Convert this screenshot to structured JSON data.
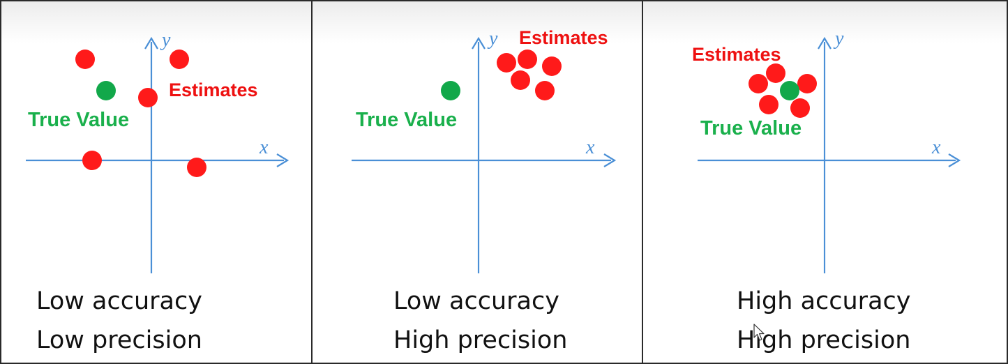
{
  "panels": [
    {
      "id": "low-accuracy-low-precision",
      "x_axis_label": "x",
      "y_axis_label": "y",
      "estimates_label": "Estimates",
      "true_value_label": "True Value",
      "caption_line1": "Low accuracy",
      "caption_line2": "Low precision",
      "true_value": {
        "x": -1.3,
        "y": 2.0
      },
      "estimates": [
        {
          "x": -1.9,
          "y": 2.9
        },
        {
          "x": 0.8,
          "y": 2.9
        },
        {
          "x": -0.1,
          "y": 1.8
        },
        {
          "x": -1.7,
          "y": 0.0
        },
        {
          "x": 1.3,
          "y": -0.2
        }
      ]
    },
    {
      "id": "low-accuracy-high-precision",
      "x_axis_label": "x",
      "y_axis_label": "y",
      "estimates_label": "Estimates",
      "true_value_label": "True Value",
      "caption_line1": "Low accuracy",
      "caption_line2": "High precision",
      "true_value": {
        "x": -0.8,
        "y": 2.0
      },
      "estimates": [
        {
          "x": 0.8,
          "y": 2.8
        },
        {
          "x": 1.4,
          "y": 2.9
        },
        {
          "x": 2.1,
          "y": 2.7
        },
        {
          "x": 1.2,
          "y": 2.3
        },
        {
          "x": 1.9,
          "y": 2.0
        }
      ]
    },
    {
      "id": "high-accuracy-high-precision",
      "x_axis_label": "x",
      "y_axis_label": "y",
      "estimates_label": "Estimates",
      "true_value_label": "True Value",
      "caption_line1": "High accuracy",
      "caption_line2": "High precision",
      "true_value": {
        "x": -1.0,
        "y": 2.0
      },
      "estimates": [
        {
          "x": -1.4,
          "y": 2.5
        },
        {
          "x": -1.9,
          "y": 2.2
        },
        {
          "x": -0.5,
          "y": 2.2
        },
        {
          "x": -1.6,
          "y": 1.6
        },
        {
          "x": -0.7,
          "y": 1.5
        }
      ]
    }
  ],
  "colors": {
    "estimate": "#ff1a1a",
    "true_value": "#12a84a",
    "axis": "#4a8fd6"
  }
}
